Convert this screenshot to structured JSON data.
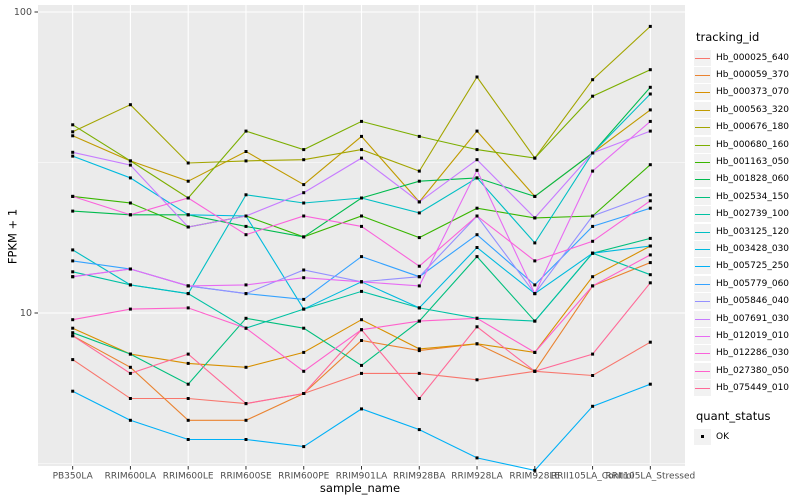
{
  "colors": {
    "panel_background": "#EBEBEB",
    "gridline": "#FFFFFF",
    "tick_mark": "#333333",
    "tick_label": "#4D4D4D",
    "axis_title": "#000000",
    "legend_key_background": "#F2F2F2",
    "point_marker": "#000000"
  },
  "chart_data": {
    "type": "line",
    "title": "",
    "xlabel": "sample_name",
    "ylabel": "FPKM + 1",
    "y_scale": "log10",
    "ylim": [
      3.0,
      105
    ],
    "y_tick_labels": [
      "10",
      "100"
    ],
    "y_major_ticks": [
      10,
      100
    ],
    "y_minor_gridlines": [
      3.1623,
      31.6228
    ],
    "grid": true,
    "legend_position": "right",
    "legend_title": "tracking_id",
    "marker_legend": {
      "title": "quant_status",
      "label": "OK",
      "shape": "filled-square",
      "color": "#000000"
    },
    "categories": [
      "PB350LA",
      "RRIM600LA",
      "RRIM600LE",
      "RRIM600SE",
      "RRIM600PE",
      "RRIM901LA",
      "RRIM928BA",
      "RRIM928LA",
      "RRIM928LE",
      "RRII105LA_Control",
      "RRII105LA_Stressed"
    ],
    "series": [
      {
        "name": "Hb_000025_640",
        "color": "#F8766D",
        "values": [
          7.0,
          5.2,
          5.2,
          5.0,
          5.4,
          6.3,
          6.3,
          6.0,
          6.4,
          6.2,
          8.0
        ]
      },
      {
        "name": "Hb_000059_370",
        "color": "#EA8331",
        "values": [
          8.4,
          6.6,
          4.4,
          4.4,
          5.4,
          8.1,
          7.5,
          7.9,
          6.4,
          12.3,
          14.7
        ]
      },
      {
        "name": "Hb_000373_070",
        "color": "#D89000",
        "values": [
          8.9,
          7.3,
          6.8,
          6.6,
          7.4,
          9.5,
          7.6,
          7.9,
          7.4,
          13.2,
          16.7
        ]
      },
      {
        "name": "Hb_000563_320",
        "color": "#C09B00",
        "values": [
          38.8,
          32.0,
          27.4,
          34.4,
          26.7,
          38.6,
          23.4,
          40.2,
          24.4,
          34.0,
          47.3
        ]
      },
      {
        "name": "Hb_000676_180",
        "color": "#A3A500",
        "values": [
          40.0,
          49.2,
          31.5,
          32.0,
          32.3,
          34.9,
          29.6,
          60.8,
          32.7,
          59.6,
          89.6
        ]
      },
      {
        "name": "Hb_000680_160",
        "color": "#7CAE00",
        "values": [
          42.2,
          32.0,
          24.1,
          40.2,
          34.9,
          43.3,
          38.6,
          34.9,
          32.7,
          52.5,
          64.3
        ]
      },
      {
        "name": "Hb_001163_050",
        "color": "#39B600",
        "values": [
          24.4,
          23.2,
          19.3,
          21.0,
          17.9,
          21.0,
          17.8,
          22.3,
          20.7,
          21.0,
          31.1
        ]
      },
      {
        "name": "Hb_001828_060",
        "color": "#00BB4E",
        "values": [
          21.8,
          21.2,
          21.2,
          19.4,
          17.9,
          24.1,
          27.4,
          28.1,
          24.4,
          34.0,
          56.2
        ]
      },
      {
        "name": "Hb_002534_150",
        "color": "#00BF7D",
        "values": [
          8.6,
          7.3,
          5.8,
          9.6,
          8.9,
          6.7,
          9.4,
          15.4,
          9.4,
          15.8,
          17.7
        ]
      },
      {
        "name": "Hb_002739_100",
        "color": "#00C1A3",
        "values": [
          13.7,
          12.4,
          11.6,
          8.9,
          10.3,
          11.8,
          10.4,
          9.6,
          9.4,
          15.8,
          13.4
        ]
      },
      {
        "name": "Hb_003125_120",
        "color": "#00BFC4",
        "values": [
          16.2,
          12.4,
          11.6,
          24.7,
          23.2,
          24.1,
          21.5,
          28.1,
          17.1,
          34.0,
          53.4
        ]
      },
      {
        "name": "Hb_003428_030",
        "color": "#00BADE",
        "values": [
          33.2,
          28.1,
          21.2,
          21.0,
          10.3,
          12.7,
          10.4,
          16.5,
          11.6,
          15.8,
          16.7
        ]
      },
      {
        "name": "Hb_005725_250",
        "color": "#00B0F6",
        "values": [
          5.5,
          4.4,
          3.8,
          3.8,
          3.6,
          4.8,
          4.1,
          3.3,
          3.0,
          4.9,
          5.8
        ]
      },
      {
        "name": "Hb_005779_060",
        "color": "#35A2FF",
        "values": [
          14.9,
          14.0,
          12.3,
          11.6,
          11.1,
          15.4,
          13.2,
          18.2,
          12.4,
          19.4,
          22.3
        ]
      },
      {
        "name": "Hb_005846_040",
        "color": "#9590FF",
        "values": [
          13.2,
          14.0,
          12.3,
          11.6,
          13.9,
          12.7,
          13.2,
          21.0,
          11.6,
          21.0,
          24.7
        ]
      },
      {
        "name": "Hb_007691_030",
        "color": "#C77CFF",
        "values": [
          34.2,
          31.0,
          19.3,
          21.0,
          25.1,
          32.7,
          23.4,
          32.3,
          20.7,
          34.0,
          40.2
        ]
      },
      {
        "name": "Hb_012019_010",
        "color": "#E76BF3",
        "values": [
          13.2,
          14.0,
          12.3,
          12.4,
          13.1,
          12.7,
          12.3,
          29.8,
          11.6,
          29.6,
          43.3
        ]
      },
      {
        "name": "Hb_012286_030",
        "color": "#FA62DB",
        "values": [
          24.4,
          21.2,
          24.1,
          18.2,
          21.0,
          19.4,
          14.3,
          21.0,
          14.9,
          17.3,
          23.6
        ]
      },
      {
        "name": "Hb_027380_050",
        "color": "#FF61CC",
        "values": [
          9.5,
          10.3,
          10.4,
          8.9,
          6.4,
          8.8,
          9.4,
          9.6,
          7.4,
          12.3,
          15.6
        ]
      },
      {
        "name": "Hb_075449_010",
        "color": "#FF6A98",
        "values": [
          8.4,
          6.3,
          7.3,
          5.0,
          5.4,
          8.8,
          5.2,
          9.0,
          6.4,
          7.3,
          12.6
        ]
      }
    ]
  }
}
